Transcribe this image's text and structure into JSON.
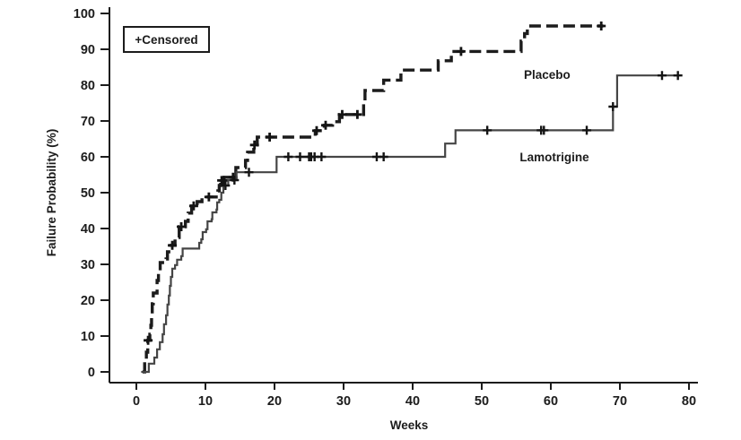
{
  "figure": {
    "legend_label": "+Censored",
    "xlabel": "Weeks",
    "ylabel": "Failure Probability (%)"
  },
  "chart_data": {
    "type": "line",
    "subtype": "kaplan-meier-step-function",
    "title": "",
    "xlabel": "Weeks",
    "ylabel": "Failure Probability (%)",
    "xlim": [
      0,
      80
    ],
    "ylim": [
      0,
      100
    ],
    "x_ticks": [
      0,
      10,
      20,
      30,
      40,
      50,
      60,
      70,
      80
    ],
    "y_ticks": [
      0,
      10,
      20,
      30,
      40,
      50,
      60,
      70,
      80,
      90,
      100
    ],
    "grid": false,
    "legend": {
      "text": "+Censored",
      "position": "top-left-inside"
    },
    "censored_marker": "+",
    "series": [
      {
        "name": "Placebo",
        "line_style": "dashed",
        "color": "#1c1c1c",
        "label_pos": [
          56.1,
          83
        ],
        "steps": [
          [
            0.9,
            0
          ],
          [
            1.2,
            3
          ],
          [
            1.45,
            5.5
          ],
          [
            1.65,
            8.8
          ],
          [
            1.95,
            10.5
          ],
          [
            2.1,
            13
          ],
          [
            2.2,
            16
          ],
          [
            2.3,
            19
          ],
          [
            2.45,
            22
          ],
          [
            3.0,
            25.5
          ],
          [
            3.2,
            28
          ],
          [
            3.45,
            30.5
          ],
          [
            4.3,
            31.5
          ],
          [
            4.5,
            33.5
          ],
          [
            4.7,
            35.3
          ],
          [
            5.6,
            37.5
          ],
          [
            6.2,
            40.5
          ],
          [
            7.1,
            42
          ],
          [
            7.5,
            44.3
          ],
          [
            8.0,
            46.3
          ],
          [
            8.8,
            47.5
          ],
          [
            9.5,
            48.8
          ],
          [
            11.8,
            50.5
          ],
          [
            12.0,
            52
          ],
          [
            12.2,
            53.4
          ],
          [
            12.7,
            54.3
          ],
          [
            14.4,
            57
          ],
          [
            15.8,
            59
          ],
          [
            16.1,
            61.3
          ],
          [
            17.0,
            63.3
          ],
          [
            17.5,
            65.5
          ],
          [
            25.9,
            67.3
          ],
          [
            27.2,
            68.8
          ],
          [
            28.4,
            69.8
          ],
          [
            29.4,
            71.8
          ],
          [
            32.9,
            75.2
          ],
          [
            33.1,
            78.5
          ],
          [
            35.8,
            81.4
          ],
          [
            38.3,
            84.2
          ],
          [
            43.7,
            86.8
          ],
          [
            45.6,
            89.4
          ],
          [
            55.7,
            92.3
          ],
          [
            56.2,
            94.4
          ],
          [
            56.6,
            96.5
          ],
          [
            67.6,
            96.5
          ]
        ],
        "censored": [
          [
            1.7,
            8.8
          ],
          [
            5.2,
            35.3
          ],
          [
            6.5,
            40.5
          ],
          [
            8.3,
            46.3
          ],
          [
            10.5,
            48.8
          ],
          [
            12.35,
            53.4
          ],
          [
            12.65,
            53.4
          ],
          [
            14.0,
            54.3
          ],
          [
            17.1,
            63.3
          ],
          [
            19.3,
            65.5
          ],
          [
            26.1,
            67.3
          ],
          [
            27.4,
            68.8
          ],
          [
            29.8,
            71.8
          ],
          [
            32.0,
            71.8
          ],
          [
            47.0,
            89.4
          ],
          [
            67.3,
            96.5
          ]
        ]
      },
      {
        "name": "Lamotrigine",
        "line_style": "solid",
        "color": "#454545",
        "label_pos": [
          55.5,
          60
        ],
        "steps": [
          [
            0.7,
            0
          ],
          [
            1.8,
            2.3
          ],
          [
            2.6,
            4
          ],
          [
            3.0,
            6.3
          ],
          [
            3.4,
            8.3
          ],
          [
            3.8,
            10.5
          ],
          [
            4.0,
            13.3
          ],
          [
            4.3,
            15.8
          ],
          [
            4.5,
            18.8
          ],
          [
            4.7,
            21.3
          ],
          [
            4.85,
            24
          ],
          [
            5.0,
            26.5
          ],
          [
            5.2,
            28.8
          ],
          [
            5.6,
            29.8
          ],
          [
            5.9,
            31.3
          ],
          [
            6.5,
            32.3
          ],
          [
            6.7,
            34.4
          ],
          [
            9.1,
            36
          ],
          [
            9.4,
            37
          ],
          [
            9.6,
            39
          ],
          [
            10.1,
            39.8
          ],
          [
            10.3,
            42
          ],
          [
            10.9,
            42.6
          ],
          [
            11.0,
            44.5
          ],
          [
            11.6,
            45.3
          ],
          [
            11.7,
            47.3
          ],
          [
            12.0,
            48
          ],
          [
            12.3,
            50
          ],
          [
            12.6,
            52
          ],
          [
            13.3,
            53.5
          ],
          [
            14.5,
            55.7
          ],
          [
            20.3,
            60
          ],
          [
            44.7,
            63.7
          ],
          [
            46.2,
            67.4
          ],
          [
            69.0,
            74
          ],
          [
            69.6,
            82.7
          ],
          [
            78.6,
            82.7
          ]
        ],
        "censored": [
          [
            12.9,
            52
          ],
          [
            14.2,
            53.5
          ],
          [
            16.3,
            55.7
          ],
          [
            22.0,
            60
          ],
          [
            23.7,
            60
          ],
          [
            25.0,
            60
          ],
          [
            25.3,
            60
          ],
          [
            25.8,
            60
          ],
          [
            26.8,
            60
          ],
          [
            34.8,
            60
          ],
          [
            35.8,
            60
          ],
          [
            50.8,
            67.4
          ],
          [
            58.6,
            67.4
          ],
          [
            59.0,
            67.4
          ],
          [
            65.2,
            67.4
          ],
          [
            69.0,
            74
          ],
          [
            76.1,
            82.7
          ],
          [
            78.4,
            82.7
          ]
        ]
      }
    ]
  }
}
